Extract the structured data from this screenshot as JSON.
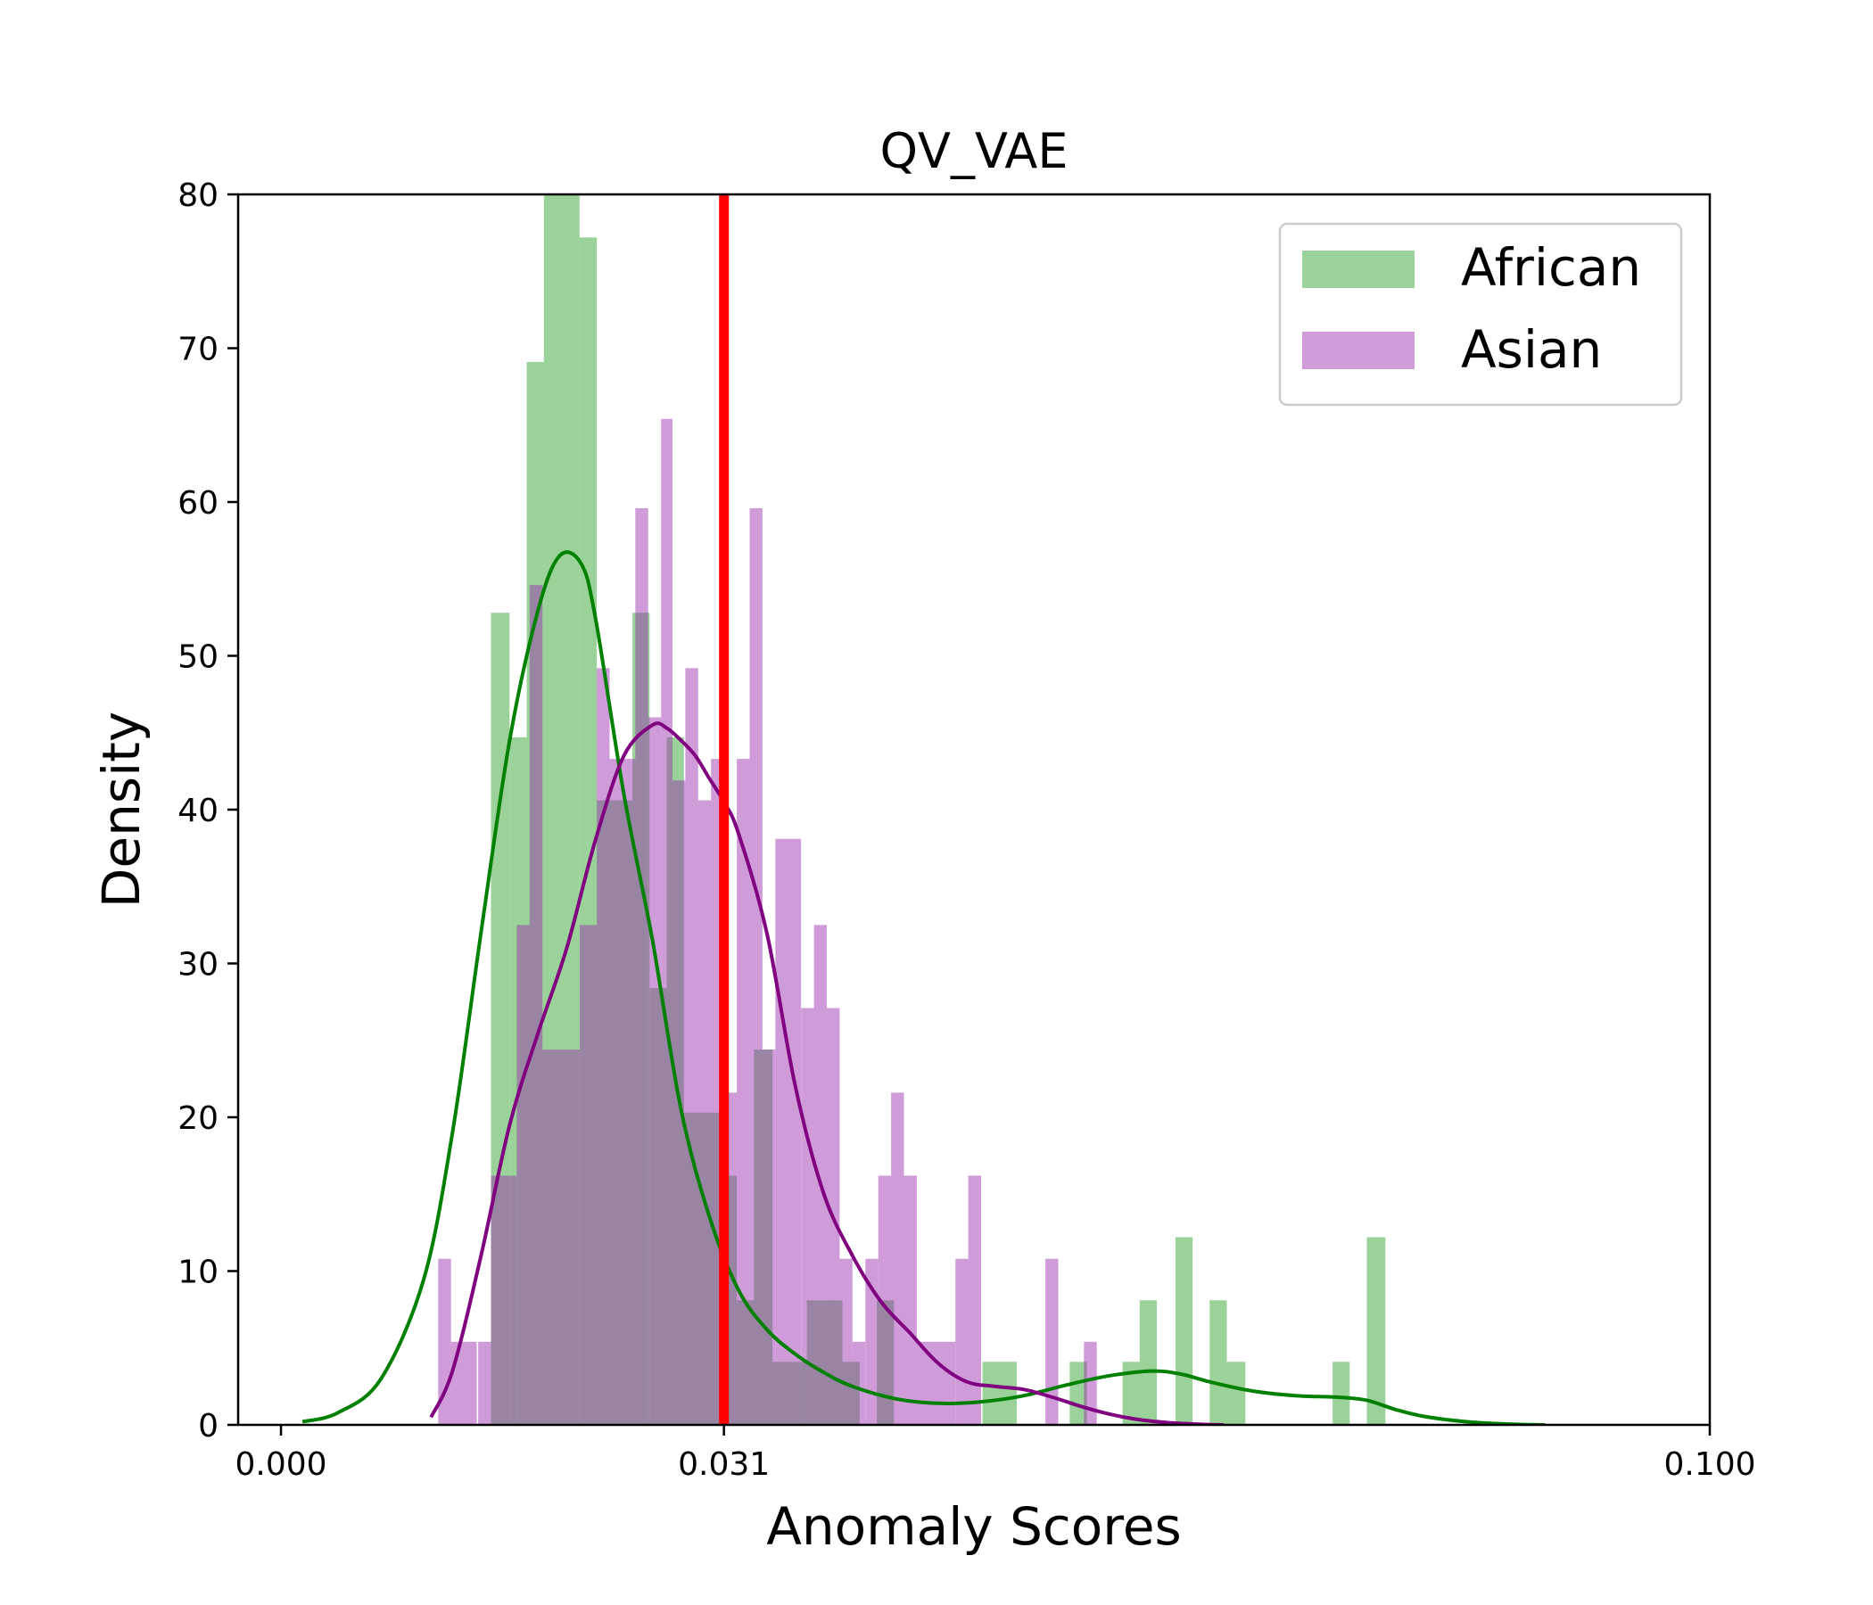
{
  "chart_data": {
    "type": "histogram",
    "title": "QV_VAE",
    "xlabel": "Anomaly Scores",
    "ylabel": "Density",
    "xlim": [
      -0.003,
      0.1
    ],
    "ylim": [
      0,
      80
    ],
    "xticks": [
      0.0,
      0.031,
      0.1
    ],
    "xtick_labels": [
      "0.000",
      "0.031",
      "0.100"
    ],
    "yticks": [
      0,
      10,
      20,
      30,
      40,
      50,
      60,
      70,
      80
    ],
    "ytick_labels": [
      "0",
      "10",
      "20",
      "30",
      "40",
      "50",
      "60",
      "70",
      "80"
    ],
    "threshold": {
      "x": 0.031,
      "color": "#ff0000"
    },
    "legend_position": "top-right",
    "series": [
      {
        "name": "African",
        "color": "#2ca02c",
        "hist_color": "#9bcc98",
        "kde_color": "#008000",
        "bins": [
          {
            "x0": 0.0147,
            "x1": 0.016,
            "d": 52.8
          },
          {
            "x0": 0.016,
            "x1": 0.0172,
            "d": 44.7
          },
          {
            "x0": 0.0172,
            "x1": 0.0184,
            "d": 69.1
          },
          {
            "x0": 0.0184,
            "x1": 0.0209,
            "d": 80.0
          },
          {
            "x0": 0.0209,
            "x1": 0.0221,
            "d": 77.2
          },
          {
            "x0": 0.0221,
            "x1": 0.0233,
            "d": 40.6
          },
          {
            "x0": 0.0233,
            "x1": 0.0246,
            "d": 40.6
          },
          {
            "x0": 0.0246,
            "x1": 0.0258,
            "d": 52.8
          },
          {
            "x0": 0.0258,
            "x1": 0.027,
            "d": 28.4
          },
          {
            "x0": 0.027,
            "x1": 0.0282,
            "d": 44.7
          },
          {
            "x0": 0.0282,
            "x1": 0.0295,
            "d": 20.3
          },
          {
            "x0": 0.0295,
            "x1": 0.0307,
            "d": 20.3
          },
          {
            "x0": 0.0307,
            "x1": 0.0319,
            "d": 16.2
          },
          {
            "x0": 0.0319,
            "x1": 0.0331,
            "d": 8.1
          },
          {
            "x0": 0.0331,
            "x1": 0.0344,
            "d": 24.4
          },
          {
            "x0": 0.0344,
            "x1": 0.0356,
            "d": 4.1
          },
          {
            "x0": 0.0356,
            "x1": 0.0368,
            "d": 4.1
          },
          {
            "x0": 0.0368,
            "x1": 0.038,
            "d": 8.1
          },
          {
            "x0": 0.038,
            "x1": 0.0393,
            "d": 8.1
          },
          {
            "x0": 0.0393,
            "x1": 0.0405,
            "d": 4.1
          },
          {
            "x0": 0.0417,
            "x1": 0.0429,
            "d": 8.1
          },
          {
            "x0": 0.0491,
            "x1": 0.0515,
            "d": 4.1
          },
          {
            "x0": 0.0552,
            "x1": 0.0564,
            "d": 4.1
          },
          {
            "x0": 0.0589,
            "x1": 0.0601,
            "d": 4.1
          },
          {
            "x0": 0.0601,
            "x1": 0.0613,
            "d": 8.1
          },
          {
            "x0": 0.0626,
            "x1": 0.0638,
            "d": 12.2
          },
          {
            "x0": 0.065,
            "x1": 0.0662,
            "d": 8.1
          },
          {
            "x0": 0.0662,
            "x1": 0.0675,
            "d": 4.1
          },
          {
            "x0": 0.0736,
            "x1": 0.0748,
            "d": 4.1
          },
          {
            "x0": 0.076,
            "x1": 0.0773,
            "d": 12.2
          }
        ],
        "kde": {
          "x": [
            0.0015,
            0.004,
            0.007,
            0.01,
            0.012,
            0.014,
            0.016,
            0.018,
            0.0195,
            0.021,
            0.022,
            0.024,
            0.026,
            0.028,
            0.03,
            0.032,
            0.034,
            0.036,
            0.038,
            0.04,
            0.043,
            0.046,
            0.049,
            0.052,
            0.055,
            0.058,
            0.061,
            0.063,
            0.065,
            0.068,
            0.071,
            0.074,
            0.076,
            0.078,
            0.08,
            0.083,
            0.086,
            0.0885
          ],
          "y": [
            0.2,
            0.8,
            3.0,
            9.5,
            19.0,
            32.0,
            44.5,
            53.0,
            56.5,
            56.0,
            52.5,
            41.0,
            31.5,
            20.5,
            13.5,
            8.8,
            6.2,
            4.6,
            3.4,
            2.5,
            1.7,
            1.4,
            1.5,
            1.9,
            2.6,
            3.2,
            3.5,
            3.3,
            2.8,
            2.2,
            1.9,
            1.8,
            1.6,
            1.0,
            0.55,
            0.2,
            0.05,
            0.0
          ]
        }
      },
      {
        "name": "Asian",
        "color": "#9b30b0",
        "hist_color": "#cc99cc",
        "kde_color": "#800080",
        "bins": [
          {
            "x0": 0.011,
            "x1": 0.0119,
            "d": 10.8
          },
          {
            "x0": 0.0119,
            "x1": 0.0137,
            "d": 5.4
          },
          {
            "x0": 0.0138,
            "x1": 0.0147,
            "d": 5.4
          },
          {
            "x0": 0.0147,
            "x1": 0.0165,
            "d": 16.2
          },
          {
            "x0": 0.0165,
            "x1": 0.0174,
            "d": 32.5
          },
          {
            "x0": 0.0174,
            "x1": 0.0183,
            "d": 54.6
          },
          {
            "x0": 0.0183,
            "x1": 0.0209,
            "d": 24.4
          },
          {
            "x0": 0.0209,
            "x1": 0.0221,
            "d": 32.5
          },
          {
            "x0": 0.0221,
            "x1": 0.023,
            "d": 49.2
          },
          {
            "x0": 0.023,
            "x1": 0.0239,
            "d": 43.3
          },
          {
            "x0": 0.0239,
            "x1": 0.0248,
            "d": 43.3
          },
          {
            "x0": 0.0248,
            "x1": 0.0257,
            "d": 59.6
          },
          {
            "x0": 0.0257,
            "x1": 0.0266,
            "d": 46.0
          },
          {
            "x0": 0.0266,
            "x1": 0.0274,
            "d": 65.4
          },
          {
            "x0": 0.0274,
            "x1": 0.0283,
            "d": 41.9
          },
          {
            "x0": 0.0283,
            "x1": 0.0292,
            "d": 49.2
          },
          {
            "x0": 0.0292,
            "x1": 0.0301,
            "d": 40.6
          },
          {
            "x0": 0.0301,
            "x1": 0.031,
            "d": 43.3
          },
          {
            "x0": 0.031,
            "x1": 0.0319,
            "d": 21.6
          },
          {
            "x0": 0.0319,
            "x1": 0.0328,
            "d": 43.3
          },
          {
            "x0": 0.0328,
            "x1": 0.0337,
            "d": 59.6
          },
          {
            "x0": 0.0337,
            "x1": 0.0346,
            "d": 24.4
          },
          {
            "x0": 0.0346,
            "x1": 0.0364,
            "d": 38.1
          },
          {
            "x0": 0.0364,
            "x1": 0.0373,
            "d": 27.1
          },
          {
            "x0": 0.0373,
            "x1": 0.0382,
            "d": 32.5
          },
          {
            "x0": 0.0382,
            "x1": 0.0391,
            "d": 27.1
          },
          {
            "x0": 0.0391,
            "x1": 0.04,
            "d": 10.8
          },
          {
            "x0": 0.04,
            "x1": 0.0409,
            "d": 5.4
          },
          {
            "x0": 0.0409,
            "x1": 0.0418,
            "d": 10.8
          },
          {
            "x0": 0.0418,
            "x1": 0.0427,
            "d": 16.2
          },
          {
            "x0": 0.0427,
            "x1": 0.0436,
            "d": 21.6
          },
          {
            "x0": 0.0436,
            "x1": 0.0445,
            "d": 16.2
          },
          {
            "x0": 0.0445,
            "x1": 0.0454,
            "d": 5.4
          },
          {
            "x0": 0.0454,
            "x1": 0.0472,
            "d": 5.4
          },
          {
            "x0": 0.0472,
            "x1": 0.0481,
            "d": 10.8
          },
          {
            "x0": 0.0481,
            "x1": 0.049,
            "d": 16.2
          },
          {
            "x0": 0.0535,
            "x1": 0.0544,
            "d": 10.8
          },
          {
            "x0": 0.0562,
            "x1": 0.0571,
            "d": 5.4
          }
        ],
        "kde": {
          "x": [
            0.0105,
            0.012,
            0.014,
            0.016,
            0.018,
            0.02,
            0.022,
            0.024,
            0.026,
            0.027,
            0.028,
            0.029,
            0.03,
            0.031,
            0.032,
            0.034,
            0.036,
            0.038,
            0.04,
            0.042,
            0.044,
            0.046,
            0.048,
            0.05,
            0.052,
            0.054,
            0.056,
            0.058,
            0.06,
            0.062,
            0.064,
            0.066
          ],
          "y": [
            0.5,
            3.5,
            11.0,
            19.5,
            25.5,
            31.0,
            38.0,
            43.5,
            45.5,
            45.3,
            44.5,
            43.5,
            42.0,
            40.5,
            38.5,
            32.0,
            22.0,
            15.0,
            11.0,
            8.0,
            6.0,
            4.0,
            2.8,
            2.5,
            2.3,
            1.8,
            1.2,
            0.7,
            0.35,
            0.15,
            0.05,
            0.0
          ]
        }
      }
    ]
  }
}
